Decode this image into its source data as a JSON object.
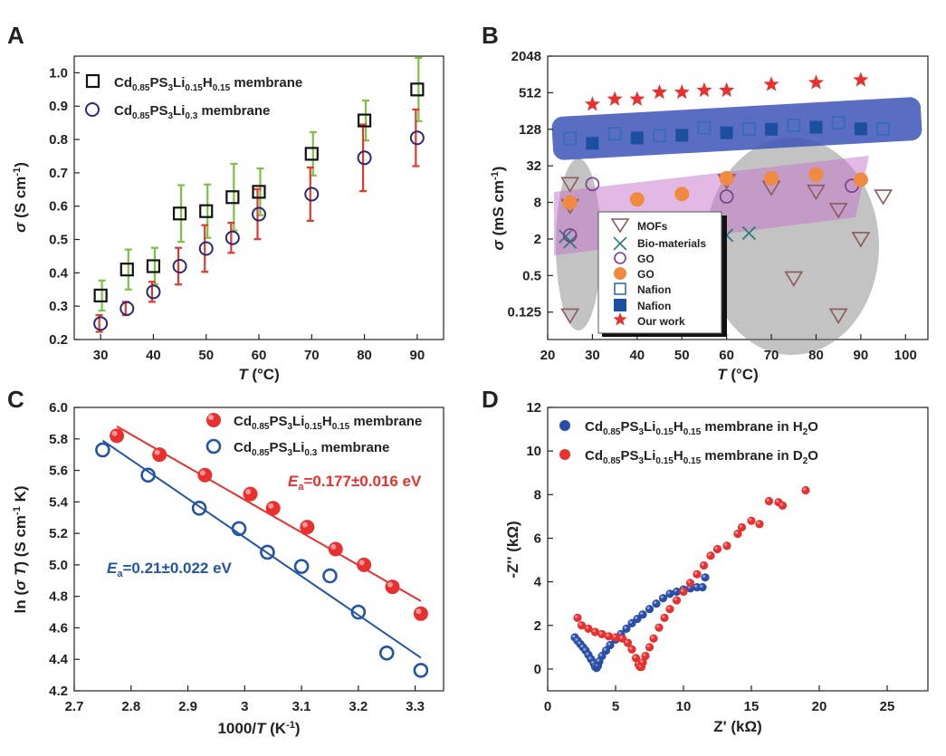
{
  "chart_data": [
    {
      "panel": "A",
      "type": "scatter",
      "xlabel": "T (°C)",
      "ylabel": "σ (S cm⁻¹)",
      "xlim": [
        25,
        95
      ],
      "ylim": [
        0.2,
        1.05
      ],
      "xticks": [
        30,
        40,
        50,
        60,
        70,
        80,
        90
      ],
      "yticks": [
        0.2,
        0.3,
        0.4,
        0.5,
        0.6,
        0.7,
        0.8,
        0.9,
        1.0
      ],
      "legend": [
        "Cd0.85PS3Li0.15H0.15 membrane",
        "Cd0.85PS3Li0.3 membrane"
      ],
      "series": [
        {
          "name": "Cd0.85PS3Li0.15H0.15 membrane",
          "marker": "square",
          "color": "#111111",
          "error_color": "#7cc242",
          "x": [
            30,
            35,
            40,
            45,
            50,
            55,
            60,
            70,
            80,
            90
          ],
          "y": [
            0.332,
            0.41,
            0.42,
            0.578,
            0.585,
            0.627,
            0.643,
            0.757,
            0.857,
            0.95
          ],
          "err": [
            0.045,
            0.06,
            0.055,
            0.085,
            0.08,
            0.1,
            0.07,
            0.065,
            0.06,
            0.095
          ]
        },
        {
          "name": "Cd0.85PS3Li0.3 membrane",
          "marker": "circle",
          "color": "#2c2a6e",
          "error_color": "#e03a2e",
          "x": [
            30,
            35,
            40,
            45,
            50,
            55,
            60,
            70,
            80,
            90
          ],
          "y": [
            0.248,
            0.293,
            0.343,
            0.42,
            0.473,
            0.505,
            0.576,
            0.636,
            0.745,
            0.805
          ],
          "err": [
            0.025,
            0.02,
            0.03,
            0.055,
            0.07,
            0.045,
            0.075,
            0.08,
            0.1,
            0.085
          ]
        }
      ]
    },
    {
      "panel": "B",
      "type": "scatter",
      "xlabel": "T (°C)",
      "ylabel": "σ (mS cm⁻¹)",
      "xlim": [
        20,
        105
      ],
      "ylim_log2": [
        -4.5,
        11
      ],
      "xticks": [
        20,
        30,
        40,
        50,
        60,
        70,
        80,
        90,
        100
      ],
      "yticks": [
        "0.125",
        "0.5",
        "2",
        "8",
        "32",
        "128",
        "512",
        "2048"
      ],
      "legend": [
        "MOFs",
        "Bio-materials",
        "GO",
        "GO",
        "Nafion",
        "Nafion",
        "Our work"
      ],
      "series": [
        {
          "name": "MOFs",
          "marker": "triangle-down-open",
          "color": "#8b5a5a",
          "points": [
            [
              25,
              16
            ],
            [
              25,
              7
            ],
            [
              60,
              18
            ],
            [
              70,
              14
            ],
            [
              75,
              0.45
            ],
            [
              80,
              12
            ],
            [
              85,
              0.11
            ],
            [
              85,
              6
            ],
            [
              90,
              2
            ],
            [
              95,
              10
            ],
            [
              25,
              0.11
            ]
          ]
        },
        {
          "name": "Bio-materials",
          "marker": "x",
          "color": "#2e7d7d",
          "points": [
            [
              24,
              2.2
            ],
            [
              25,
              1.8
            ],
            [
              60,
              2.3
            ],
            [
              65,
              2.5
            ]
          ]
        },
        {
          "name": "GO",
          "marker": "circle-open",
          "color": "#7a3a8c",
          "points": [
            [
              25,
              2.3
            ],
            [
              30,
              16
            ],
            [
              60,
              10
            ],
            [
              70,
              20
            ],
            [
              88,
              15
            ]
          ]
        },
        {
          "name": "GO",
          "marker": "circle-filled",
          "color": "#f08a40",
          "points": [
            [
              25,
              8
            ],
            [
              40,
              9
            ],
            [
              50,
              11
            ],
            [
              60,
              20
            ],
            [
              70,
              20
            ],
            [
              80,
              23
            ],
            [
              90,
              19
            ]
          ]
        },
        {
          "name": "Nafion",
          "marker": "square-open",
          "color": "#2f6db5",
          "points": [
            [
              25,
              90
            ],
            [
              35,
              108
            ],
            [
              45,
              100
            ],
            [
              55,
              135
            ],
            [
              65,
              130
            ],
            [
              75,
              148
            ],
            [
              85,
              165
            ],
            [
              95,
              130
            ]
          ]
        },
        {
          "name": "Nafion",
          "marker": "square-filled",
          "color": "#1d4fa0",
          "points": [
            [
              30,
              75
            ],
            [
              40,
              92
            ],
            [
              50,
              102
            ],
            [
              60,
              112
            ],
            [
              70,
              128
            ],
            [
              80,
              138
            ],
            [
              90,
              130
            ]
          ]
        },
        {
          "name": "Our work",
          "marker": "star",
          "color": "#e8312f",
          "points": [
            [
              30,
              330
            ],
            [
              35,
              400
            ],
            [
              40,
              400
            ],
            [
              45,
              520
            ],
            [
              50,
              520
            ],
            [
              55,
              560
            ],
            [
              60,
              560
            ],
            [
              70,
              700
            ],
            [
              80,
              750
            ],
            [
              90,
              830
            ]
          ]
        }
      ]
    },
    {
      "panel": "C",
      "type": "scatter",
      "xlabel": "1000/T (K⁻¹)",
      "ylabel": "ln (σT) (S cm⁻¹ K)",
      "xlim": [
        2.7,
        3.35
      ],
      "ylim": [
        4.2,
        6.0
      ],
      "xticks": [
        2.7,
        2.8,
        2.9,
        3.0,
        3.1,
        3.2,
        3.3
      ],
      "yticks": [
        4.2,
        4.4,
        4.6,
        4.8,
        5.0,
        5.2,
        5.4,
        5.6,
        5.8,
        6.0
      ],
      "legend": [
        "Cd0.85PS3Li0.15H0.15 membrane",
        "Cd0.85PS3Li0.3 membrane"
      ],
      "annotations": [
        "Ea=0.177±0.016 eV",
        "Ea=0.21±0.022 eV"
      ],
      "series": [
        {
          "name": "Cd0.85PS3Li0.15H0.15 membrane",
          "marker": "sphere",
          "color": "#e8312f",
          "x": [
            2.775,
            2.85,
            2.93,
            3.01,
            3.05,
            3.11,
            3.16,
            3.21,
            3.26,
            3.31
          ],
          "y": [
            5.82,
            5.7,
            5.57,
            5.45,
            5.36,
            5.24,
            5.1,
            5.0,
            4.86,
            4.69
          ],
          "fit": [
            [
              2.775,
              5.88
            ],
            [
              3.31,
              4.77
            ]
          ]
        },
        {
          "name": "Cd0.85PS3Li0.3 membrane",
          "marker": "circle-open",
          "color": "#2455a4",
          "x": [
            2.75,
            2.83,
            2.92,
            2.99,
            3.04,
            3.1,
            3.15,
            3.2,
            3.25,
            3.31
          ],
          "y": [
            5.73,
            5.57,
            5.36,
            5.23,
            5.08,
            4.99,
            4.93,
            4.7,
            4.44,
            4.33
          ],
          "fit": [
            [
              2.75,
              5.79
            ],
            [
              3.31,
              4.41
            ]
          ]
        }
      ]
    },
    {
      "panel": "D",
      "type": "scatter",
      "xlabel": "Z' (kΩ)",
      "ylabel": "-Z'' (kΩ)",
      "xlim": [
        0,
        28
      ],
      "ylim": [
        -1,
        12
      ],
      "xticks": [
        0,
        5,
        10,
        15,
        20,
        25
      ],
      "yticks": [
        0,
        2,
        4,
        6,
        8,
        10,
        12
      ],
      "legend": [
        "Cd0.85PS3Li0.15H0.15 membrane in H2O",
        "Cd0.85PS3Li0.15H0.15 membrane in D2O"
      ],
      "series": [
        {
          "name": "Cd0.85PS3Li0.15H0.15 membrane in H2O",
          "marker": "sphere",
          "color": "#2a4ea8",
          "points": [
            [
              2.0,
              1.45
            ],
            [
              2.2,
              1.3
            ],
            [
              2.4,
              1.15
            ],
            [
              2.6,
              1.0
            ],
            [
              2.8,
              0.85
            ],
            [
              3.0,
              0.65
            ],
            [
              3.2,
              0.45
            ],
            [
              3.4,
              0.25
            ],
            [
              3.5,
              0.1
            ],
            [
              3.6,
              0.05
            ],
            [
              3.7,
              0.15
            ],
            [
              3.8,
              0.35
            ],
            [
              4.0,
              0.6
            ],
            [
              4.3,
              0.85
            ],
            [
              4.6,
              1.1
            ],
            [
              5.0,
              1.35
            ],
            [
              5.4,
              1.6
            ],
            [
              5.8,
              1.85
            ],
            [
              6.2,
              2.1
            ],
            [
              6.6,
              2.3
            ],
            [
              7.0,
              2.5
            ],
            [
              7.5,
              2.75
            ],
            [
              8.0,
              3.0
            ],
            [
              8.5,
              3.25
            ],
            [
              9.0,
              3.45
            ],
            [
              9.5,
              3.55
            ],
            [
              10.0,
              3.65
            ],
            [
              10.5,
              3.7
            ],
            [
              11.0,
              3.75
            ],
            [
              11.4,
              3.75
            ],
            [
              11.6,
              4.2
            ]
          ]
        },
        {
          "name": "Cd0.85PS3Li0.15H0.15 membrane in D2O",
          "marker": "sphere",
          "color": "#e8312f",
          "points": [
            [
              2.2,
              2.35
            ],
            [
              2.5,
              2.0
            ],
            [
              3.0,
              1.85
            ],
            [
              3.5,
              1.7
            ],
            [
              4.0,
              1.6
            ],
            [
              4.5,
              1.5
            ],
            [
              5.0,
              1.45
            ],
            [
              5.5,
              1.4
            ],
            [
              5.9,
              1.2
            ],
            [
              6.2,
              0.9
            ],
            [
              6.5,
              0.5
            ],
            [
              6.7,
              0.2
            ],
            [
              6.8,
              0.1
            ],
            [
              6.9,
              0.1
            ],
            [
              7.0,
              0.3
            ],
            [
              7.2,
              0.6
            ],
            [
              7.5,
              1.0
            ],
            [
              7.8,
              1.4
            ],
            [
              8.2,
              1.9
            ],
            [
              8.6,
              2.35
            ],
            [
              9.0,
              2.75
            ],
            [
              9.5,
              3.15
            ],
            [
              10.0,
              3.55
            ],
            [
              10.5,
              3.95
            ],
            [
              11.0,
              4.35
            ],
            [
              11.5,
              4.75
            ],
            [
              12.0,
              5.2
            ],
            [
              12.5,
              5.5
            ],
            [
              13.2,
              5.65
            ],
            [
              14.0,
              6.2
            ],
            [
              14.3,
              6.5
            ],
            [
              15.0,
              6.8
            ],
            [
              15.6,
              6.65
            ],
            [
              16.3,
              7.7
            ],
            [
              17.0,
              7.65
            ],
            [
              17.3,
              7.5
            ],
            [
              19.0,
              8.2
            ]
          ]
        }
      ]
    }
  ],
  "labels": {
    "panel_a": "A",
    "panel_b": "B",
    "panel_c": "C",
    "panel_d": "D",
    "a_legend_1_base": "Cd",
    "a_legend_1_sub1": "0.85",
    "a_legend_1_mid": "PS",
    "a_legend_1_sub2": "3",
    "a_legend_1_li": "Li",
    "a_legend_1_sub3": "0.15",
    "a_legend_1_h": "H",
    "a_legend_1_sub4": "0.15",
    "a_legend_1_tail": " membrane",
    "a_legend_2_sub3": "0.3",
    "b_mofs": "MOFs",
    "b_bio": "Bio-materials",
    "b_go1": "GO",
    "b_go2": "GO",
    "b_nafion1": "Nafion",
    "b_nafion2": "Nafion",
    "b_ourwork": "Our work",
    "c_ea1_prefix": "E",
    "c_ea_sub": "a",
    "c_ea1_value": "=0.177±0.016 eV",
    "c_ea2_value": "=0.21±0.022 eV",
    "d_legend_h2o_tail": " membrane in H",
    "d_legend_d2o_tail": " membrane in D",
    "d_sub_2": "2",
    "d_o": "O"
  }
}
